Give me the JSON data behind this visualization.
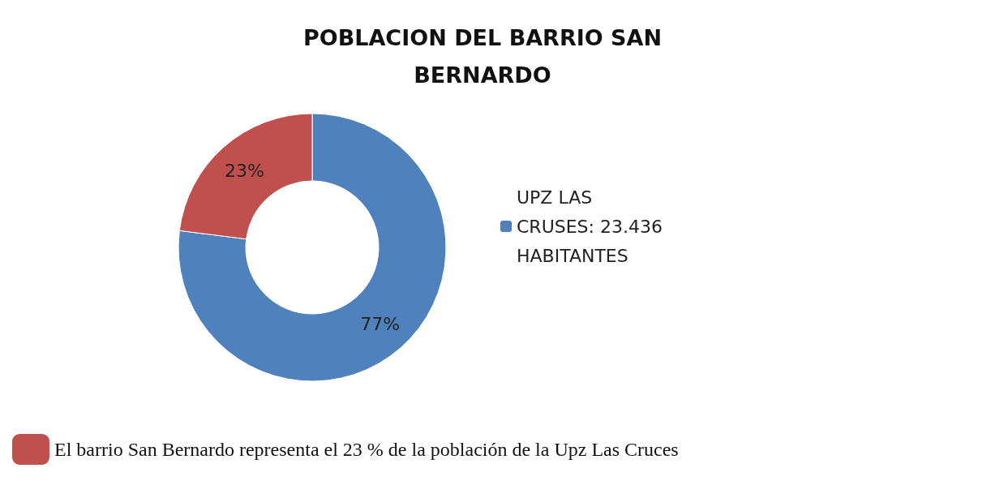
{
  "chart_data": {
    "type": "donut",
    "title": "POBLACION DEL BARRIO SAN\nBERNARDO",
    "categories": [
      "UPZ LAS CRUSES: 23.436 HABITANTES",
      "El barrio San Bernardo representa el 23 % de la población de la Upz Las Cruces"
    ],
    "values": [
      77,
      23
    ],
    "colors": [
      "#4f81bd",
      "#c0504d"
    ],
    "value_labels": [
      "77%",
      "23%"
    ],
    "legend": "right"
  }
}
